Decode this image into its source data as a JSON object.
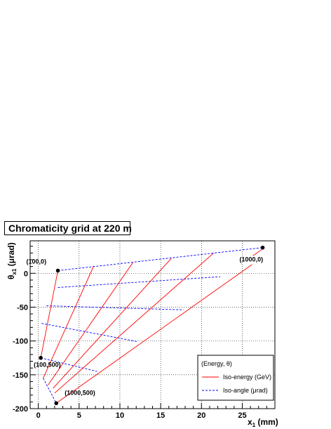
{
  "chart_data": {
    "type": "line",
    "title": "Chromaticity grid at 220 m",
    "xlabel": "x",
    "xlabel_sub": "1",
    "xlabel_unit": " (mm)",
    "ylabel": "θ",
    "ylabel_sub": "x1",
    "ylabel_unit": " (μrad)",
    "xlim": [
      -1,
      29
    ],
    "ylim": [
      -200,
      48
    ],
    "x_ticks": [
      0,
      5,
      10,
      15,
      20,
      25
    ],
    "y_ticks": [
      0,
      -50,
      -100,
      -150,
      -200
    ],
    "grid": true,
    "colors": {
      "iso_energy": "#ff0000",
      "iso_angle": "#0000ff"
    },
    "iso_energy_lines": [
      {
        "points": [
          [
            0.3,
            -125
          ],
          [
            2.4,
            4
          ]
        ]
      },
      {
        "points": [
          [
            0.6,
            -155
          ],
          [
            6.8,
            11
          ]
        ]
      },
      {
        "points": [
          [
            1.2,
            -165
          ],
          [
            11.6,
            16
          ]
        ]
      },
      {
        "points": [
          [
            1.8,
            -170
          ],
          [
            16.3,
            22
          ]
        ]
      },
      {
        "points": [
          [
            2.0,
            -177
          ],
          [
            21.5,
            30
          ]
        ]
      },
      {
        "points": [
          [
            2.2,
            -192
          ],
          [
            26.2,
            13
          ]
        ]
      },
      {
        "points": [
          [
            26.3,
            26
          ],
          [
            27.5,
            36
          ]
        ]
      }
    ],
    "iso_angle_lines": [
      {
        "points": [
          [
            2.4,
            4
          ],
          [
            27.5,
            38
          ]
        ]
      },
      {
        "points": [
          [
            2.4,
            -21
          ],
          [
            22.3,
            -5
          ]
        ]
      },
      {
        "points": [
          [
            1.0,
            -48
          ],
          [
            17.8,
            -54
          ]
        ]
      },
      {
        "points": [
          [
            0.4,
            -74
          ],
          [
            12.2,
            -101
          ]
        ]
      },
      {
        "points": [
          [
            0.3,
            -125
          ],
          [
            7.2,
            -145
          ]
        ]
      },
      {
        "points": [
          [
            0.6,
            -155
          ],
          [
            2.2,
            -192
          ]
        ]
      }
    ],
    "markers": [
      {
        "x": 2.4,
        "y": 4,
        "label": "(100,0)"
      },
      {
        "x": 27.5,
        "y": 38,
        "label": "(1000,0)"
      },
      {
        "x": 0.3,
        "y": -125,
        "label": "(100,500)"
      },
      {
        "x": 2.2,
        "y": -192,
        "label": "(1000,500)"
      }
    ],
    "legend": {
      "placement": "bottom-right",
      "header": "(Energy, θ)",
      "entries": [
        {
          "label": "Iso-energy (GeV)",
          "style": "solid"
        },
        {
          "label": "Iso-angle (μrad)",
          "style": "dashed"
        }
      ]
    }
  }
}
